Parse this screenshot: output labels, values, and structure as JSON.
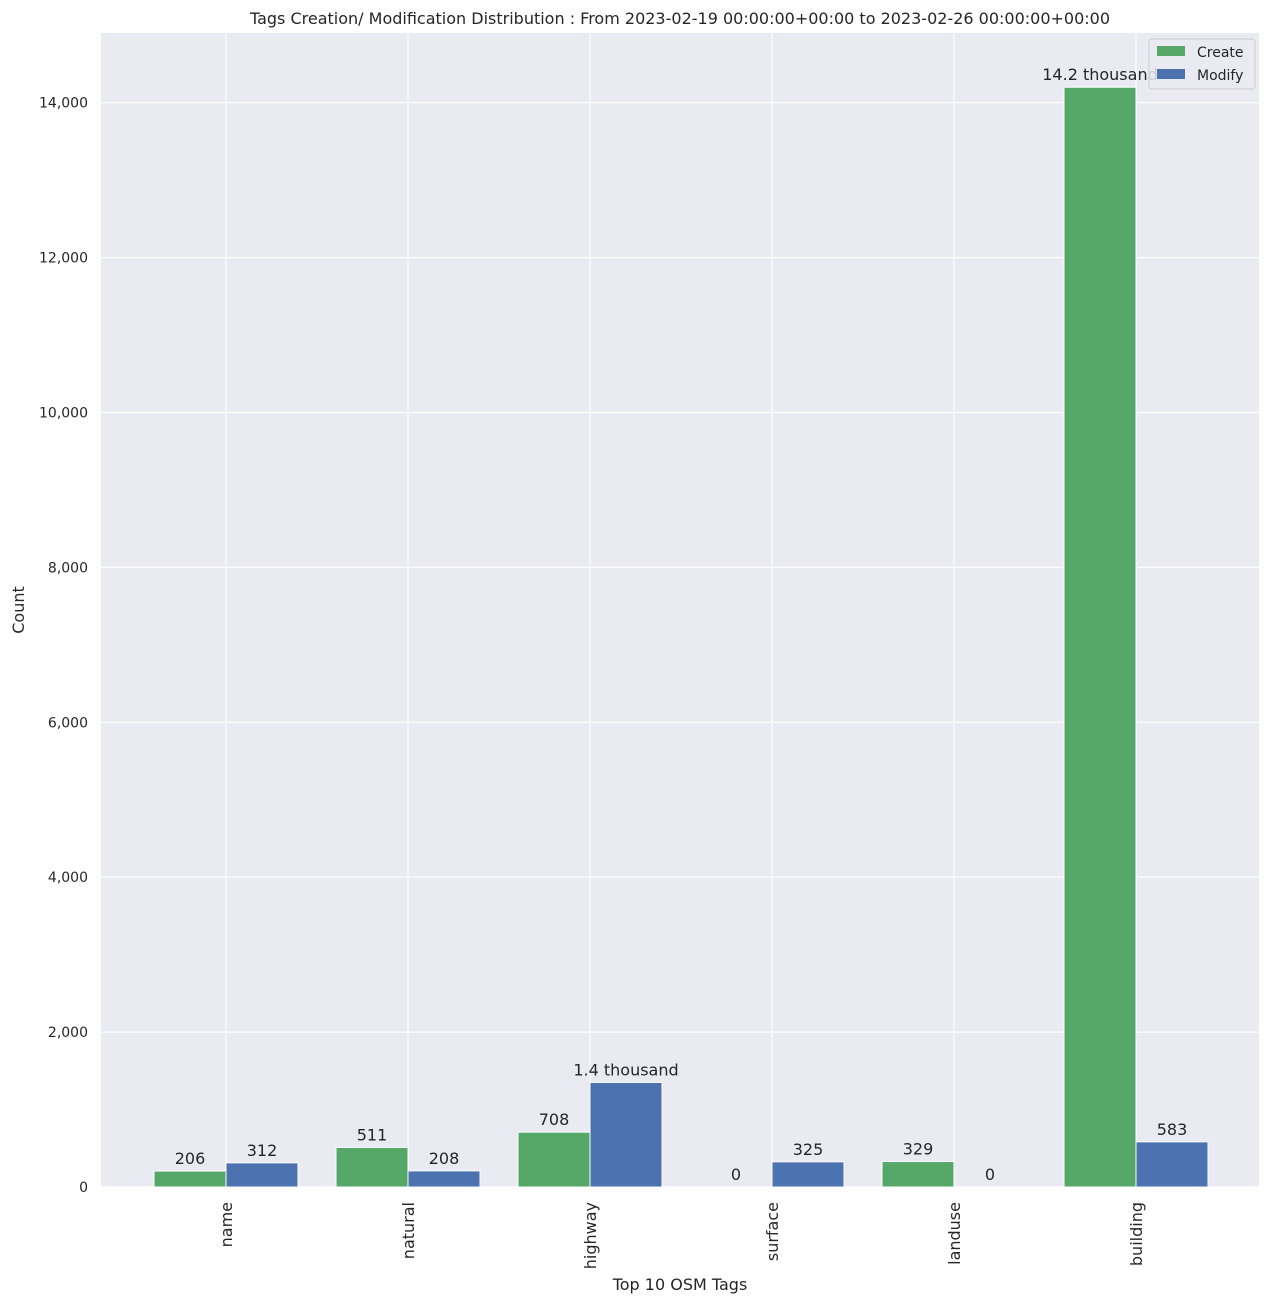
{
  "chart_data": {
    "type": "bar",
    "title": "Tags Creation/ Modification Distribution : From 2023-02-19 00:00:00+00:00 to 2023-02-26 00:00:00+00:00",
    "xlabel": "Top 10 OSM Tags",
    "ylabel": "Count",
    "categories": [
      "name",
      "natural",
      "highway",
      "surface",
      "landuse",
      "building"
    ],
    "series": [
      {
        "name": "Create",
        "color": "#55a868",
        "values": [
          206,
          511,
          708,
          0,
          329,
          14200
        ],
        "labels": [
          "206",
          "511",
          "708",
          "0",
          "329",
          "14.2 thousand"
        ]
      },
      {
        "name": "Modify",
        "color": "#4c72b0",
        "values": [
          312,
          208,
          1350,
          325,
          0,
          583
        ],
        "labels": [
          "312",
          "208",
          "1.4 thousand",
          "325",
          "0",
          "583"
        ]
      }
    ],
    "ylim": [
      0,
      14900
    ],
    "yticks": [
      0,
      2000,
      4000,
      6000,
      8000,
      10000,
      12000,
      14000
    ],
    "ytick_labels": [
      "0",
      "2,000",
      "4,000",
      "6,000",
      "8,000",
      "10,000",
      "12,000",
      "14,000"
    ],
    "grid": true,
    "legend_position": "top-right",
    "background": "#eaeaf2",
    "grid_color": "#ffffff"
  }
}
